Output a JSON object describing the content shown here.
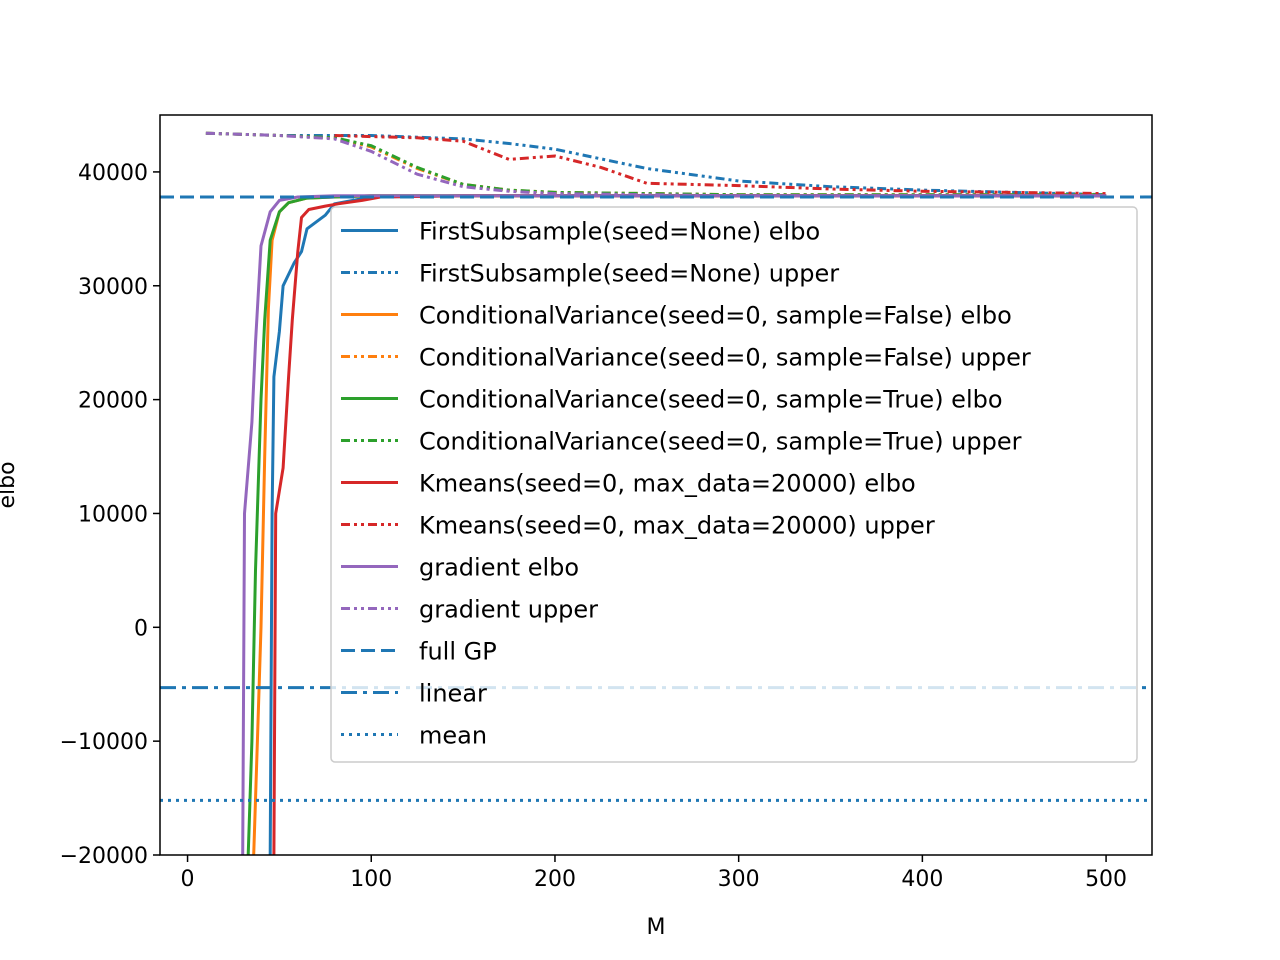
{
  "chart_data": {
    "type": "line",
    "xlabel": "M",
    "ylabel": "elbo",
    "xlim": [
      -15,
      525
    ],
    "ylim": [
      -20000,
      45000
    ],
    "xticks": [
      0,
      100,
      200,
      300,
      400,
      500
    ],
    "xtick_labels": [
      "0",
      "100",
      "200",
      "300",
      "400",
      "500"
    ],
    "yticks": [
      -20000,
      -10000,
      0,
      10000,
      20000,
      30000,
      40000
    ],
    "ytick_labels": [
      "−20000",
      "−10000",
      "0",
      "10000",
      "20000",
      "30000",
      "40000"
    ],
    "grid": false,
    "legend_position": "right",
    "series": [
      {
        "name": "FirstSubsample(seed=None) elbo",
        "color": "#1f77b4",
        "style": "solid",
        "points": [
          [
            45,
            -20000
          ],
          [
            46,
            10000
          ],
          [
            47,
            22000
          ],
          [
            50,
            26000
          ],
          [
            52,
            30000
          ],
          [
            58,
            32000
          ],
          [
            62,
            33000
          ],
          [
            65,
            35000
          ],
          [
            75,
            36200
          ],
          [
            80,
            37200
          ],
          [
            100,
            37800
          ],
          [
            150,
            37900
          ],
          [
            200,
            37900
          ],
          [
            300,
            37900
          ],
          [
            400,
            37900
          ],
          [
            500,
            37900
          ]
        ]
      },
      {
        "name": "FirstSubsample(seed=None) upper",
        "color": "#1f77b4",
        "style": "dashdotdot",
        "points": [
          [
            10,
            43400
          ],
          [
            50,
            43200
          ],
          [
            100,
            43200
          ],
          [
            150,
            42900
          ],
          [
            175,
            42500
          ],
          [
            200,
            42000
          ],
          [
            250,
            40300
          ],
          [
            300,
            39200
          ],
          [
            350,
            38700
          ],
          [
            400,
            38400
          ],
          [
            450,
            38200
          ],
          [
            500,
            38000
          ]
        ]
      },
      {
        "name": "ConditionalVariance(seed=0, sample=False) elbo",
        "color": "#ff7f0e",
        "style": "solid",
        "points": [
          [
            36,
            -20000
          ],
          [
            38,
            -10000
          ],
          [
            40,
            0
          ],
          [
            42,
            15000
          ],
          [
            44,
            28000
          ],
          [
            46,
            34000
          ],
          [
            50,
            36500
          ],
          [
            55,
            37300
          ],
          [
            65,
            37700
          ],
          [
            80,
            37800
          ],
          [
            100,
            37900
          ],
          [
            200,
            37900
          ],
          [
            300,
            37900
          ],
          [
            400,
            37900
          ],
          [
            500,
            37900
          ]
        ]
      },
      {
        "name": "ConditionalVariance(seed=0, sample=False) upper",
        "color": "#ff7f0e",
        "style": "dashdotdot",
        "points": [
          [
            10,
            43400
          ],
          [
            50,
            43200
          ],
          [
            80,
            43000
          ],
          [
            100,
            42200
          ],
          [
            125,
            40300
          ],
          [
            150,
            38900
          ],
          [
            175,
            38400
          ],
          [
            200,
            38200
          ],
          [
            300,
            38000
          ],
          [
            400,
            38000
          ],
          [
            500,
            38000
          ]
        ]
      },
      {
        "name": "ConditionalVariance(seed=0, sample=True) elbo",
        "color": "#2ca02c",
        "style": "solid",
        "points": [
          [
            33,
            -20000
          ],
          [
            35,
            -10000
          ],
          [
            37,
            5000
          ],
          [
            40,
            20000
          ],
          [
            42,
            27000
          ],
          [
            45,
            34000
          ],
          [
            50,
            36500
          ],
          [
            55,
            37300
          ],
          [
            65,
            37700
          ],
          [
            80,
            37800
          ],
          [
            100,
            37900
          ],
          [
            200,
            37900
          ],
          [
            300,
            37900
          ],
          [
            400,
            37900
          ],
          [
            500,
            37900
          ]
        ]
      },
      {
        "name": "ConditionalVariance(seed=0, sample=True) upper",
        "color": "#2ca02c",
        "style": "dashdotdot",
        "points": [
          [
            10,
            43400
          ],
          [
            50,
            43200
          ],
          [
            80,
            43000
          ],
          [
            100,
            42300
          ],
          [
            125,
            40400
          ],
          [
            150,
            38900
          ],
          [
            175,
            38400
          ],
          [
            200,
            38200
          ],
          [
            300,
            38000
          ],
          [
            400,
            38000
          ],
          [
            500,
            38000
          ]
        ]
      },
      {
        "name": "Kmeans(seed=0, max_data=20000) elbo",
        "color": "#d62728",
        "style": "solid",
        "points": [
          [
            47,
            -20000
          ],
          [
            48,
            10000
          ],
          [
            52,
            14000
          ],
          [
            55,
            22000
          ],
          [
            57,
            27000
          ],
          [
            60,
            33000
          ],
          [
            62,
            36000
          ],
          [
            66,
            36700
          ],
          [
            75,
            37000
          ],
          [
            82,
            37200
          ],
          [
            95,
            37500
          ],
          [
            105,
            37800
          ],
          [
            150,
            37900
          ],
          [
            200,
            37900
          ],
          [
            300,
            37900
          ],
          [
            400,
            37900
          ],
          [
            500,
            37900
          ]
        ]
      },
      {
        "name": "Kmeans(seed=0, max_data=20000) upper",
        "color": "#d62728",
        "style": "dashdotdot",
        "points": [
          [
            80,
            43200
          ],
          [
            100,
            43100
          ],
          [
            125,
            43000
          ],
          [
            150,
            42700
          ],
          [
            175,
            41100
          ],
          [
            200,
            41400
          ],
          [
            225,
            40400
          ],
          [
            250,
            39000
          ],
          [
            300,
            38800
          ],
          [
            350,
            38500
          ],
          [
            400,
            38300
          ],
          [
            450,
            38200
          ],
          [
            500,
            38100
          ]
        ]
      },
      {
        "name": "gradient elbo",
        "color": "#9467bd",
        "style": "solid",
        "points": [
          [
            30,
            -20000
          ],
          [
            31,
            10000
          ],
          [
            35,
            18000
          ],
          [
            37,
            25000
          ],
          [
            40,
            33500
          ],
          [
            45,
            36500
          ],
          [
            50,
            37500
          ],
          [
            60,
            37800
          ],
          [
            80,
            37900
          ],
          [
            100,
            37900
          ],
          [
            200,
            37900
          ],
          [
            300,
            37900
          ],
          [
            400,
            37900
          ],
          [
            500,
            37900
          ]
        ]
      },
      {
        "name": "gradient upper",
        "color": "#9467bd",
        "style": "dashdotdot",
        "points": [
          [
            10,
            43400
          ],
          [
            50,
            43200
          ],
          [
            80,
            42900
          ],
          [
            100,
            41800
          ],
          [
            125,
            39800
          ],
          [
            150,
            38700
          ],
          [
            175,
            38300
          ],
          [
            200,
            38100
          ],
          [
            300,
            37900
          ],
          [
            400,
            37900
          ],
          [
            500,
            37900
          ]
        ]
      },
      {
        "name": "full GP",
        "color": "#1f77b4",
        "style": "dashed",
        "hline": 37800
      },
      {
        "name": "linear",
        "color": "#1f77b4",
        "style": "dashdot",
        "hline": -5300
      },
      {
        "name": "mean",
        "color": "#1f77b4",
        "style": "dotted",
        "hline": -15200
      }
    ]
  }
}
